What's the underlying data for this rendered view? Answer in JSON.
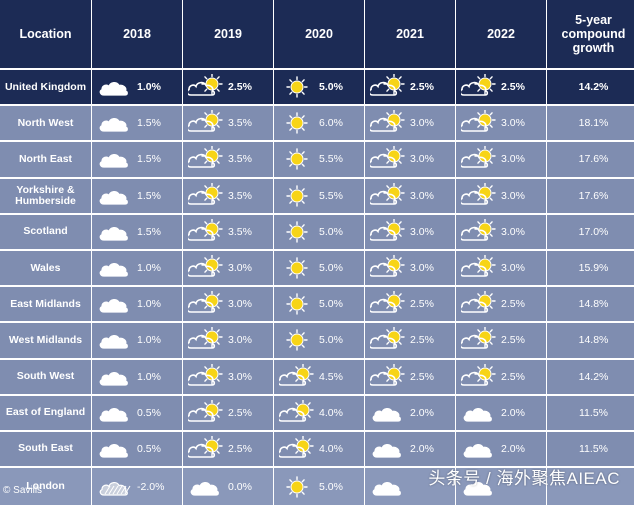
{
  "header": {
    "location": "Location",
    "years": [
      "2018",
      "2019",
      "2020",
      "2021",
      "2022"
    ],
    "growth": "5-year compound growth"
  },
  "rows": [
    {
      "location": "United Kingdom",
      "values": [
        {
          "icon": "cloud",
          "value": "1.0%"
        },
        {
          "icon": "sun-cloud",
          "value": "2.5%"
        },
        {
          "icon": "sun",
          "value": "5.0%"
        },
        {
          "icon": "sun-cloud",
          "value": "2.5%"
        },
        {
          "icon": "sun-cloud",
          "value": "2.5%"
        }
      ],
      "growth": "14.2%"
    },
    {
      "location": "North West",
      "values": [
        {
          "icon": "cloud",
          "value": "1.5%"
        },
        {
          "icon": "sun-cloud",
          "value": "3.5%"
        },
        {
          "icon": "sun",
          "value": "6.0%"
        },
        {
          "icon": "sun-cloud",
          "value": "3.0%"
        },
        {
          "icon": "sun-cloud",
          "value": "3.0%"
        }
      ],
      "growth": "18.1%"
    },
    {
      "location": "North East",
      "values": [
        {
          "icon": "cloud",
          "value": "1.5%"
        },
        {
          "icon": "sun-cloud",
          "value": "3.5%"
        },
        {
          "icon": "sun",
          "value": "5.5%"
        },
        {
          "icon": "sun-cloud",
          "value": "3.0%"
        },
        {
          "icon": "sun-cloud",
          "value": "3.0%"
        }
      ],
      "growth": "17.6%"
    },
    {
      "location": "Yorkshire & Humberside",
      "values": [
        {
          "icon": "cloud",
          "value": "1.5%"
        },
        {
          "icon": "sun-cloud",
          "value": "3.5%"
        },
        {
          "icon": "sun",
          "value": "5.5%"
        },
        {
          "icon": "sun-cloud",
          "value": "3.0%"
        },
        {
          "icon": "sun-cloud",
          "value": "3.0%"
        }
      ],
      "growth": "17.6%"
    },
    {
      "location": "Scotland",
      "values": [
        {
          "icon": "cloud",
          "value": "1.5%"
        },
        {
          "icon": "sun-cloud",
          "value": "3.5%"
        },
        {
          "icon": "sun",
          "value": "5.0%"
        },
        {
          "icon": "sun-cloud",
          "value": "3.0%"
        },
        {
          "icon": "sun-cloud",
          "value": "3.0%"
        }
      ],
      "growth": "17.0%"
    },
    {
      "location": "Wales",
      "values": [
        {
          "icon": "cloud",
          "value": "1.0%"
        },
        {
          "icon": "sun-cloud",
          "value": "3.0%"
        },
        {
          "icon": "sun",
          "value": "5.0%"
        },
        {
          "icon": "sun-cloud",
          "value": "3.0%"
        },
        {
          "icon": "sun-cloud",
          "value": "3.0%"
        }
      ],
      "growth": "15.9%"
    },
    {
      "location": "East Midlands",
      "values": [
        {
          "icon": "cloud",
          "value": "1.0%"
        },
        {
          "icon": "sun-cloud",
          "value": "3.0%"
        },
        {
          "icon": "sun",
          "value": "5.0%"
        },
        {
          "icon": "sun-cloud",
          "value": "2.5%"
        },
        {
          "icon": "sun-cloud",
          "value": "2.5%"
        }
      ],
      "growth": "14.8%"
    },
    {
      "location": "West Midlands",
      "values": [
        {
          "icon": "cloud",
          "value": "1.0%"
        },
        {
          "icon": "sun-cloud",
          "value": "3.0%"
        },
        {
          "icon": "sun",
          "value": "5.0%"
        },
        {
          "icon": "sun-cloud",
          "value": "2.5%"
        },
        {
          "icon": "sun-cloud",
          "value": "2.5%"
        }
      ],
      "growth": "14.8%"
    },
    {
      "location": "South West",
      "values": [
        {
          "icon": "cloud",
          "value": "1.0%"
        },
        {
          "icon": "sun-cloud",
          "value": "3.0%"
        },
        {
          "icon": "sun-cloud",
          "value": "4.5%"
        },
        {
          "icon": "sun-cloud",
          "value": "2.5%"
        },
        {
          "icon": "sun-cloud",
          "value": "2.5%"
        }
      ],
      "growth": "14.2%"
    },
    {
      "location": "East of England",
      "values": [
        {
          "icon": "cloud",
          "value": "0.5%"
        },
        {
          "icon": "sun-cloud",
          "value": "2.5%"
        },
        {
          "icon": "sun-cloud",
          "value": "4.0%"
        },
        {
          "icon": "cloud",
          "value": "2.0%"
        },
        {
          "icon": "cloud",
          "value": "2.0%"
        }
      ],
      "growth": "11.5%"
    },
    {
      "location": "South East",
      "values": [
        {
          "icon": "cloud",
          "value": "0.5%"
        },
        {
          "icon": "sun-cloud",
          "value": "2.5%"
        },
        {
          "icon": "sun-cloud",
          "value": "4.0%"
        },
        {
          "icon": "cloud",
          "value": "2.0%"
        },
        {
          "icon": "cloud",
          "value": "2.0%"
        }
      ],
      "growth": "11.5%"
    },
    {
      "location": "London",
      "values": [
        {
          "icon": "cloud-hatched",
          "value": "-2.0%"
        },
        {
          "icon": "cloud",
          "value": "0.0%"
        },
        {
          "icon": "sun",
          "value": "5.0%"
        },
        {
          "icon": "cloud",
          "value": ""
        },
        {
          "icon": "cloud",
          "value": ""
        }
      ],
      "growth": ""
    }
  ],
  "source": "© Savills",
  "watermark": "头条号 / 海外聚焦AIEAC",
  "colors": {
    "header_bg": "#1c2b55",
    "row_bg": "#7f8db0",
    "sun": "#f7d417"
  }
}
